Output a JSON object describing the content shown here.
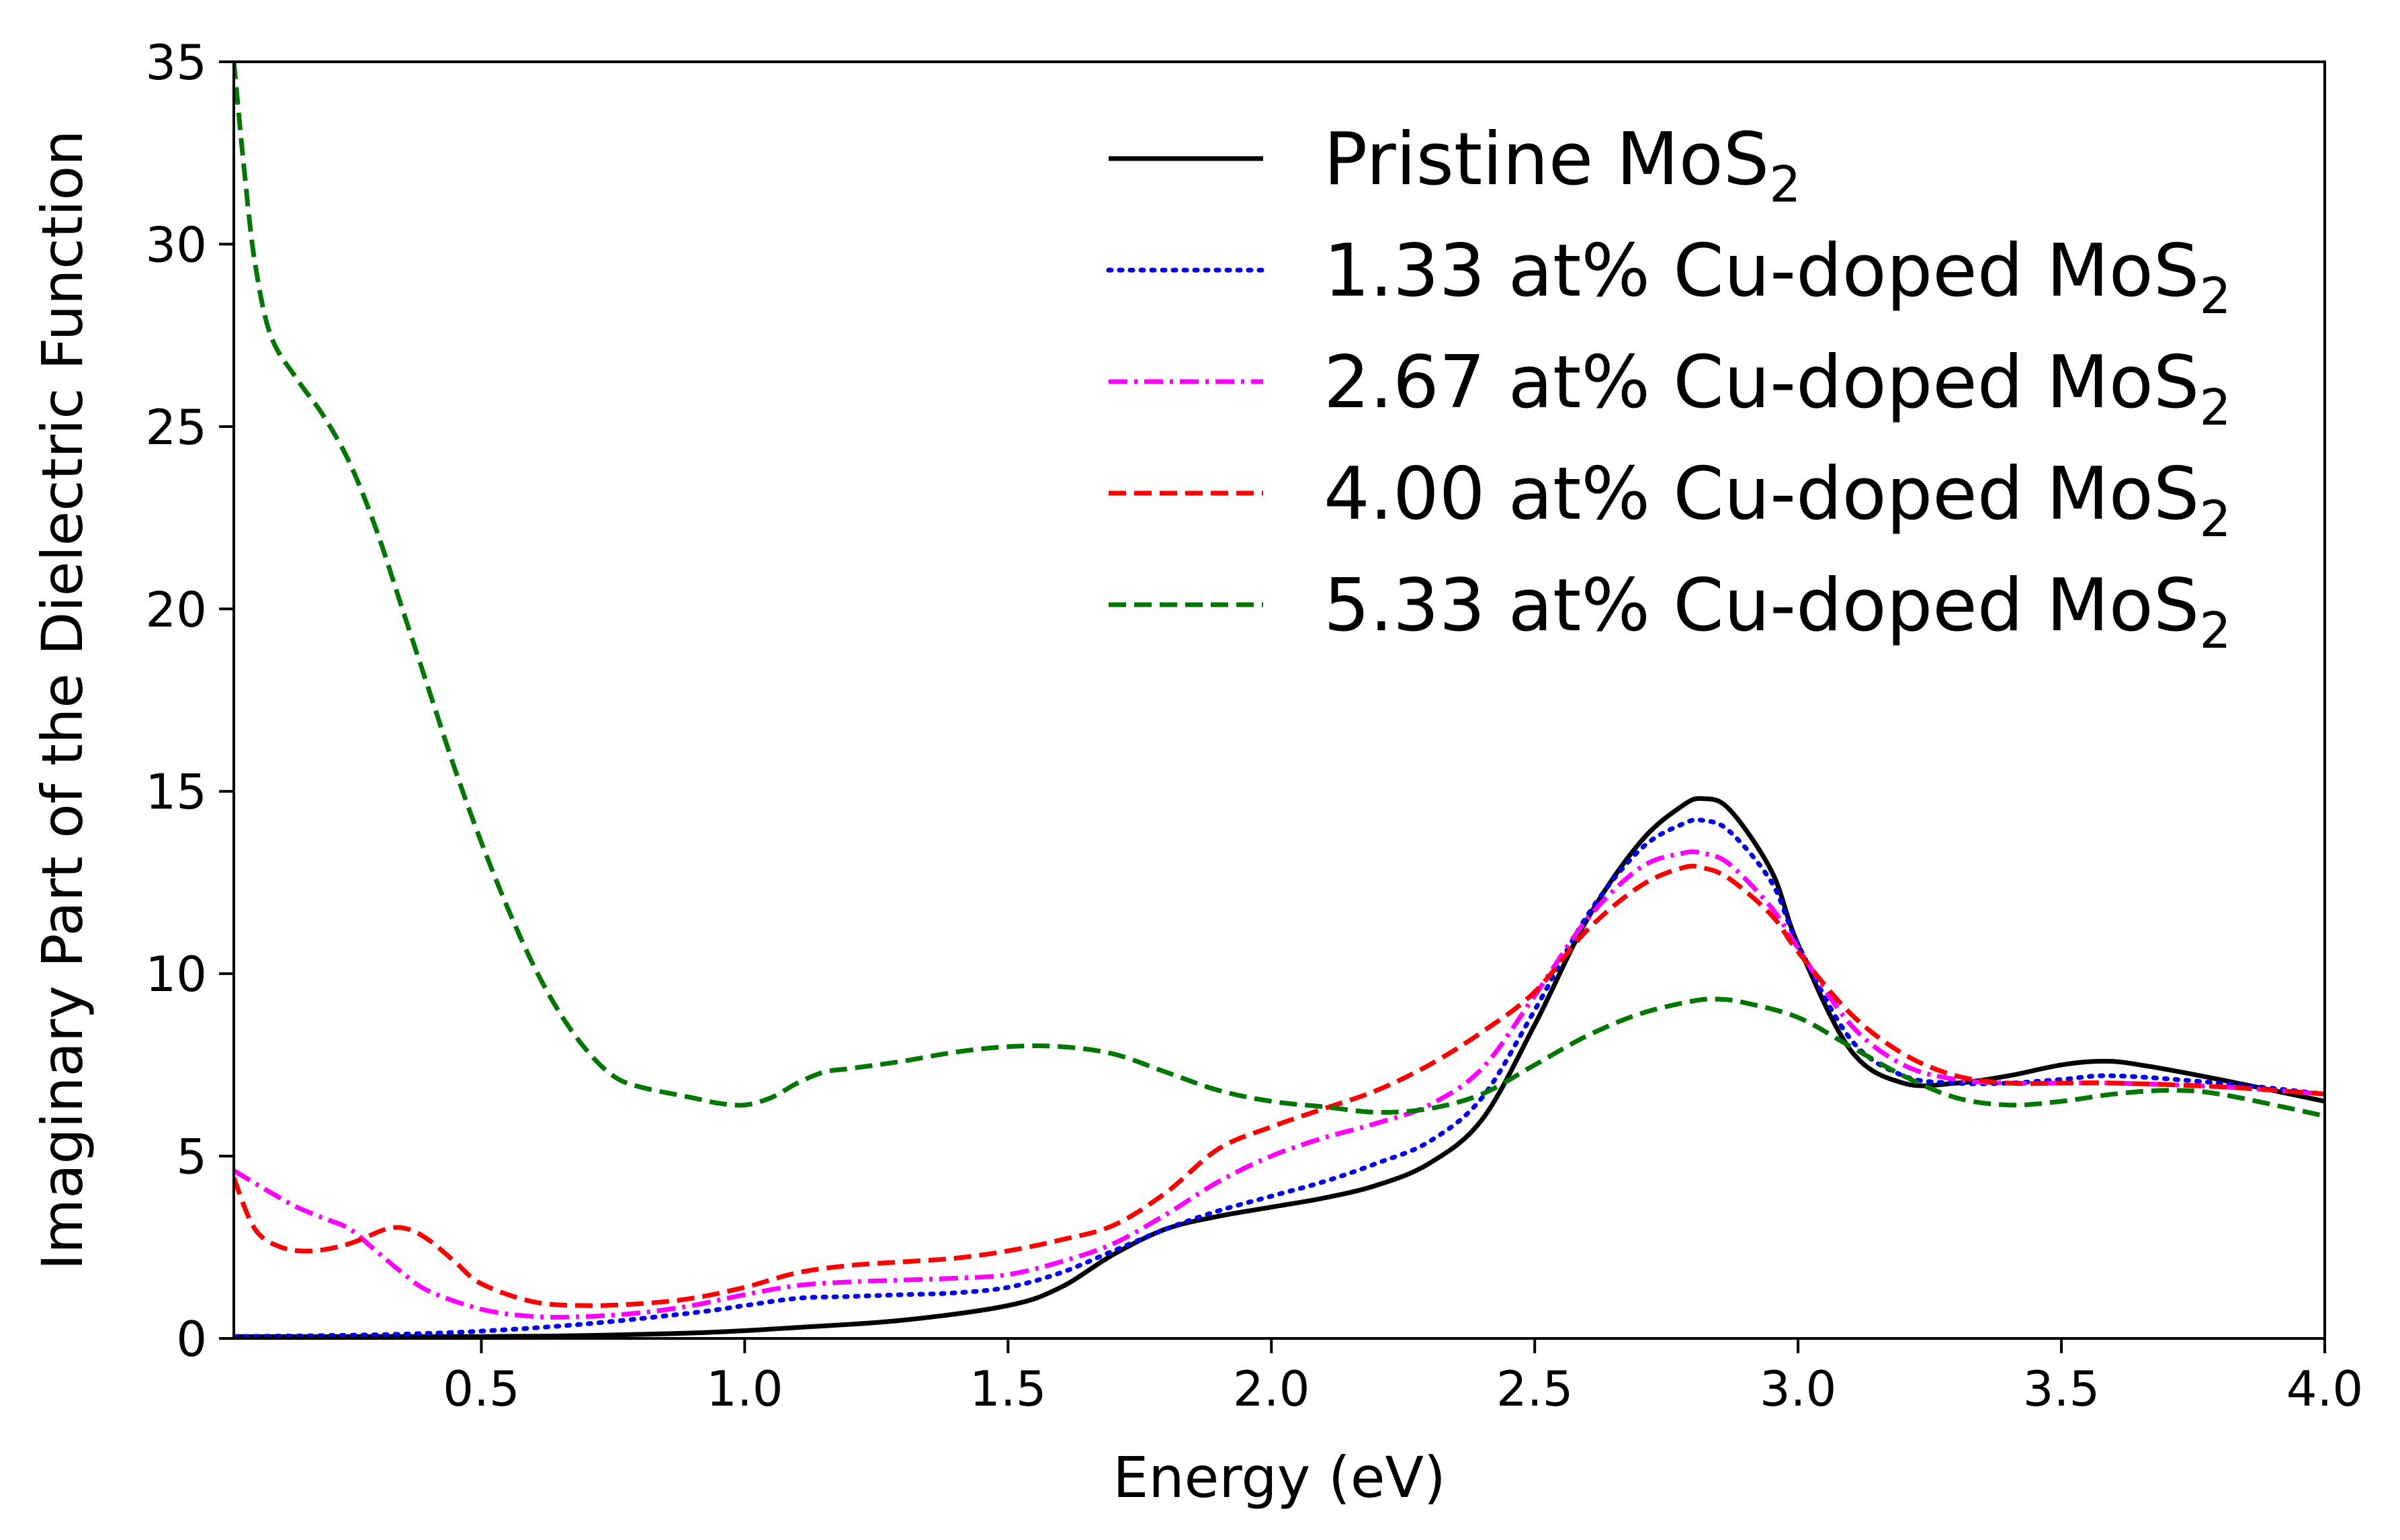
{
  "chart_data": {
    "type": "line",
    "xlabel": "Energy (eV)",
    "ylabel": "Imaginary Part of the Dielectric Function",
    "xlim": [
      0.03,
      4.0
    ],
    "ylim": [
      0,
      35
    ],
    "xticks": [
      0.5,
      1.0,
      1.5,
      2.0,
      2.5,
      3.0,
      3.5,
      4.0
    ],
    "xtick_labels": [
      "0.5",
      "1.0",
      "1.5",
      "2.0",
      "2.5",
      "3.0",
      "3.5",
      "4.0"
    ],
    "yticks": [
      0,
      5,
      10,
      15,
      20,
      25,
      30,
      35
    ],
    "ytick_labels": [
      "0",
      "5",
      "10",
      "15",
      "20",
      "25",
      "30",
      "35"
    ],
    "grid": false,
    "legend_position": "top-right",
    "series": [
      {
        "name": "Pristine MoS",
        "name_sub": "2",
        "color": "#000000",
        "style": "solid",
        "points": [
          [
            0.03,
            0.05
          ],
          [
            0.3,
            0.05
          ],
          [
            0.6,
            0.06
          ],
          [
            0.9,
            0.15
          ],
          [
            1.1,
            0.3
          ],
          [
            1.3,
            0.5
          ],
          [
            1.5,
            0.9
          ],
          [
            1.6,
            1.4
          ],
          [
            1.7,
            2.3
          ],
          [
            1.8,
            3.0
          ],
          [
            1.9,
            3.35
          ],
          [
            2.0,
            3.6
          ],
          [
            2.1,
            3.85
          ],
          [
            2.2,
            4.2
          ],
          [
            2.3,
            4.8
          ],
          [
            2.4,
            6.0
          ],
          [
            2.5,
            8.6
          ],
          [
            2.6,
            11.5
          ],
          [
            2.7,
            13.6
          ],
          [
            2.78,
            14.6
          ],
          [
            2.82,
            14.8
          ],
          [
            2.87,
            14.5
          ],
          [
            2.95,
            12.8
          ],
          [
            3.0,
            10.8
          ],
          [
            3.1,
            7.9
          ],
          [
            3.2,
            7.0
          ],
          [
            3.3,
            7.0
          ],
          [
            3.4,
            7.2
          ],
          [
            3.5,
            7.5
          ],
          [
            3.58,
            7.6
          ],
          [
            3.65,
            7.5
          ],
          [
            3.8,
            7.1
          ],
          [
            4.0,
            6.5
          ]
        ]
      },
      {
        "name": "1.33 at% Cu-doped MoS",
        "name_sub": "2",
        "color": "#0000ee",
        "style": "dotted",
        "points": [
          [
            0.03,
            0.05
          ],
          [
            0.3,
            0.1
          ],
          [
            0.5,
            0.2
          ],
          [
            0.7,
            0.4
          ],
          [
            0.9,
            0.7
          ],
          [
            1.0,
            0.9
          ],
          [
            1.1,
            1.1
          ],
          [
            1.2,
            1.15
          ],
          [
            1.3,
            1.2
          ],
          [
            1.4,
            1.25
          ],
          [
            1.5,
            1.4
          ],
          [
            1.6,
            1.8
          ],
          [
            1.7,
            2.4
          ],
          [
            1.8,
            3.0
          ],
          [
            1.9,
            3.5
          ],
          [
            2.0,
            3.9
          ],
          [
            2.1,
            4.3
          ],
          [
            2.2,
            4.8
          ],
          [
            2.3,
            5.4
          ],
          [
            2.4,
            6.6
          ],
          [
            2.5,
            9.0
          ],
          [
            2.6,
            11.6
          ],
          [
            2.7,
            13.4
          ],
          [
            2.78,
            14.1
          ],
          [
            2.82,
            14.2
          ],
          [
            2.87,
            13.9
          ],
          [
            2.95,
            12.5
          ],
          [
            3.0,
            10.8
          ],
          [
            3.1,
            8.2
          ],
          [
            3.2,
            7.2
          ],
          [
            3.3,
            7.0
          ],
          [
            3.4,
            7.0
          ],
          [
            3.5,
            7.1
          ],
          [
            3.6,
            7.2
          ],
          [
            3.8,
            7.0
          ],
          [
            4.0,
            6.7
          ]
        ]
      },
      {
        "name": "2.67 at% Cu-doped MoS",
        "name_sub": "2",
        "color": "#ff00ff",
        "style": "dashdot",
        "points": [
          [
            0.03,
            4.6
          ],
          [
            0.1,
            4.0
          ],
          [
            0.15,
            3.6
          ],
          [
            0.2,
            3.3
          ],
          [
            0.25,
            3.0
          ],
          [
            0.3,
            2.4
          ],
          [
            0.35,
            1.8
          ],
          [
            0.4,
            1.3
          ],
          [
            0.5,
            0.8
          ],
          [
            0.6,
            0.6
          ],
          [
            0.7,
            0.6
          ],
          [
            0.8,
            0.7
          ],
          [
            0.9,
            0.9
          ],
          [
            1.0,
            1.2
          ],
          [
            1.1,
            1.45
          ],
          [
            1.2,
            1.55
          ],
          [
            1.3,
            1.6
          ],
          [
            1.4,
            1.65
          ],
          [
            1.5,
            1.75
          ],
          [
            1.6,
            2.1
          ],
          [
            1.7,
            2.6
          ],
          [
            1.8,
            3.4
          ],
          [
            1.9,
            4.3
          ],
          [
            2.0,
            5.0
          ],
          [
            2.1,
            5.5
          ],
          [
            2.2,
            5.9
          ],
          [
            2.3,
            6.4
          ],
          [
            2.4,
            7.4
          ],
          [
            2.5,
            9.4
          ],
          [
            2.6,
            11.5
          ],
          [
            2.7,
            12.9
          ],
          [
            2.78,
            13.3
          ],
          [
            2.82,
            13.3
          ],
          [
            2.87,
            13.0
          ],
          [
            2.95,
            11.8
          ],
          [
            3.0,
            10.7
          ],
          [
            3.1,
            8.6
          ],
          [
            3.2,
            7.5
          ],
          [
            3.3,
            7.1
          ],
          [
            3.4,
            7.0
          ],
          [
            3.5,
            7.0
          ],
          [
            3.6,
            7.0
          ],
          [
            3.8,
            6.9
          ],
          [
            4.0,
            6.7
          ]
        ]
      },
      {
        "name": "4.00 at% Cu-doped MoS",
        "name_sub": "2",
        "color": "#ff0000",
        "style": "dashed",
        "points": [
          [
            0.03,
            4.4
          ],
          [
            0.07,
            3.0
          ],
          [
            0.12,
            2.5
          ],
          [
            0.18,
            2.4
          ],
          [
            0.25,
            2.6
          ],
          [
            0.32,
            3.0
          ],
          [
            0.36,
            3.0
          ],
          [
            0.4,
            2.7
          ],
          [
            0.45,
            2.1
          ],
          [
            0.5,
            1.5
          ],
          [
            0.6,
            1.0
          ],
          [
            0.7,
            0.9
          ],
          [
            0.8,
            0.95
          ],
          [
            0.9,
            1.1
          ],
          [
            1.0,
            1.4
          ],
          [
            1.1,
            1.8
          ],
          [
            1.2,
            2.0
          ],
          [
            1.3,
            2.1
          ],
          [
            1.4,
            2.2
          ],
          [
            1.5,
            2.4
          ],
          [
            1.6,
            2.7
          ],
          [
            1.7,
            3.1
          ],
          [
            1.8,
            4.0
          ],
          [
            1.9,
            5.2
          ],
          [
            2.0,
            5.8
          ],
          [
            2.1,
            6.3
          ],
          [
            2.2,
            6.8
          ],
          [
            2.3,
            7.5
          ],
          [
            2.4,
            8.4
          ],
          [
            2.5,
            9.5
          ],
          [
            2.6,
            11.2
          ],
          [
            2.7,
            12.4
          ],
          [
            2.78,
            12.9
          ],
          [
            2.82,
            12.9
          ],
          [
            2.87,
            12.6
          ],
          [
            2.95,
            11.6
          ],
          [
            3.0,
            10.6
          ],
          [
            3.1,
            8.9
          ],
          [
            3.2,
            7.8
          ],
          [
            3.3,
            7.2
          ],
          [
            3.4,
            7.0
          ],
          [
            3.5,
            7.0
          ],
          [
            3.6,
            7.0
          ],
          [
            3.8,
            6.9
          ],
          [
            4.0,
            6.7
          ]
        ]
      },
      {
        "name": "5.33 at% Cu-doped MoS",
        "name_sub": "2",
        "color": "#007700",
        "style": "dashed",
        "points": [
          [
            0.03,
            35.0
          ],
          [
            0.05,
            32.0
          ],
          [
            0.07,
            29.5
          ],
          [
            0.1,
            27.5
          ],
          [
            0.15,
            26.3
          ],
          [
            0.2,
            25.3
          ],
          [
            0.25,
            24.0
          ],
          [
            0.3,
            22.2
          ],
          [
            0.35,
            20.0
          ],
          [
            0.4,
            17.8
          ],
          [
            0.45,
            15.6
          ],
          [
            0.5,
            13.6
          ],
          [
            0.55,
            11.8
          ],
          [
            0.6,
            10.2
          ],
          [
            0.65,
            8.9
          ],
          [
            0.7,
            7.9
          ],
          [
            0.75,
            7.2
          ],
          [
            0.8,
            6.9
          ],
          [
            0.9,
            6.6
          ],
          [
            0.95,
            6.45
          ],
          [
            1.0,
            6.4
          ],
          [
            1.05,
            6.6
          ],
          [
            1.1,
            7.0
          ],
          [
            1.15,
            7.3
          ],
          [
            1.2,
            7.4
          ],
          [
            1.3,
            7.6
          ],
          [
            1.4,
            7.85
          ],
          [
            1.5,
            8.0
          ],
          [
            1.6,
            8.0
          ],
          [
            1.7,
            7.8
          ],
          [
            1.8,
            7.3
          ],
          [
            1.9,
            6.8
          ],
          [
            2.0,
            6.5
          ],
          [
            2.1,
            6.35
          ],
          [
            2.2,
            6.2
          ],
          [
            2.3,
            6.3
          ],
          [
            2.4,
            6.7
          ],
          [
            2.5,
            7.5
          ],
          [
            2.6,
            8.3
          ],
          [
            2.7,
            8.9
          ],
          [
            2.8,
            9.25
          ],
          [
            2.85,
            9.3
          ],
          [
            2.9,
            9.2
          ],
          [
            3.0,
            8.8
          ],
          [
            3.1,
            8.0
          ],
          [
            3.2,
            7.2
          ],
          [
            3.3,
            6.6
          ],
          [
            3.4,
            6.4
          ],
          [
            3.5,
            6.5
          ],
          [
            3.6,
            6.7
          ],
          [
            3.7,
            6.8
          ],
          [
            3.8,
            6.7
          ],
          [
            4.0,
            6.1
          ]
        ]
      }
    ]
  }
}
